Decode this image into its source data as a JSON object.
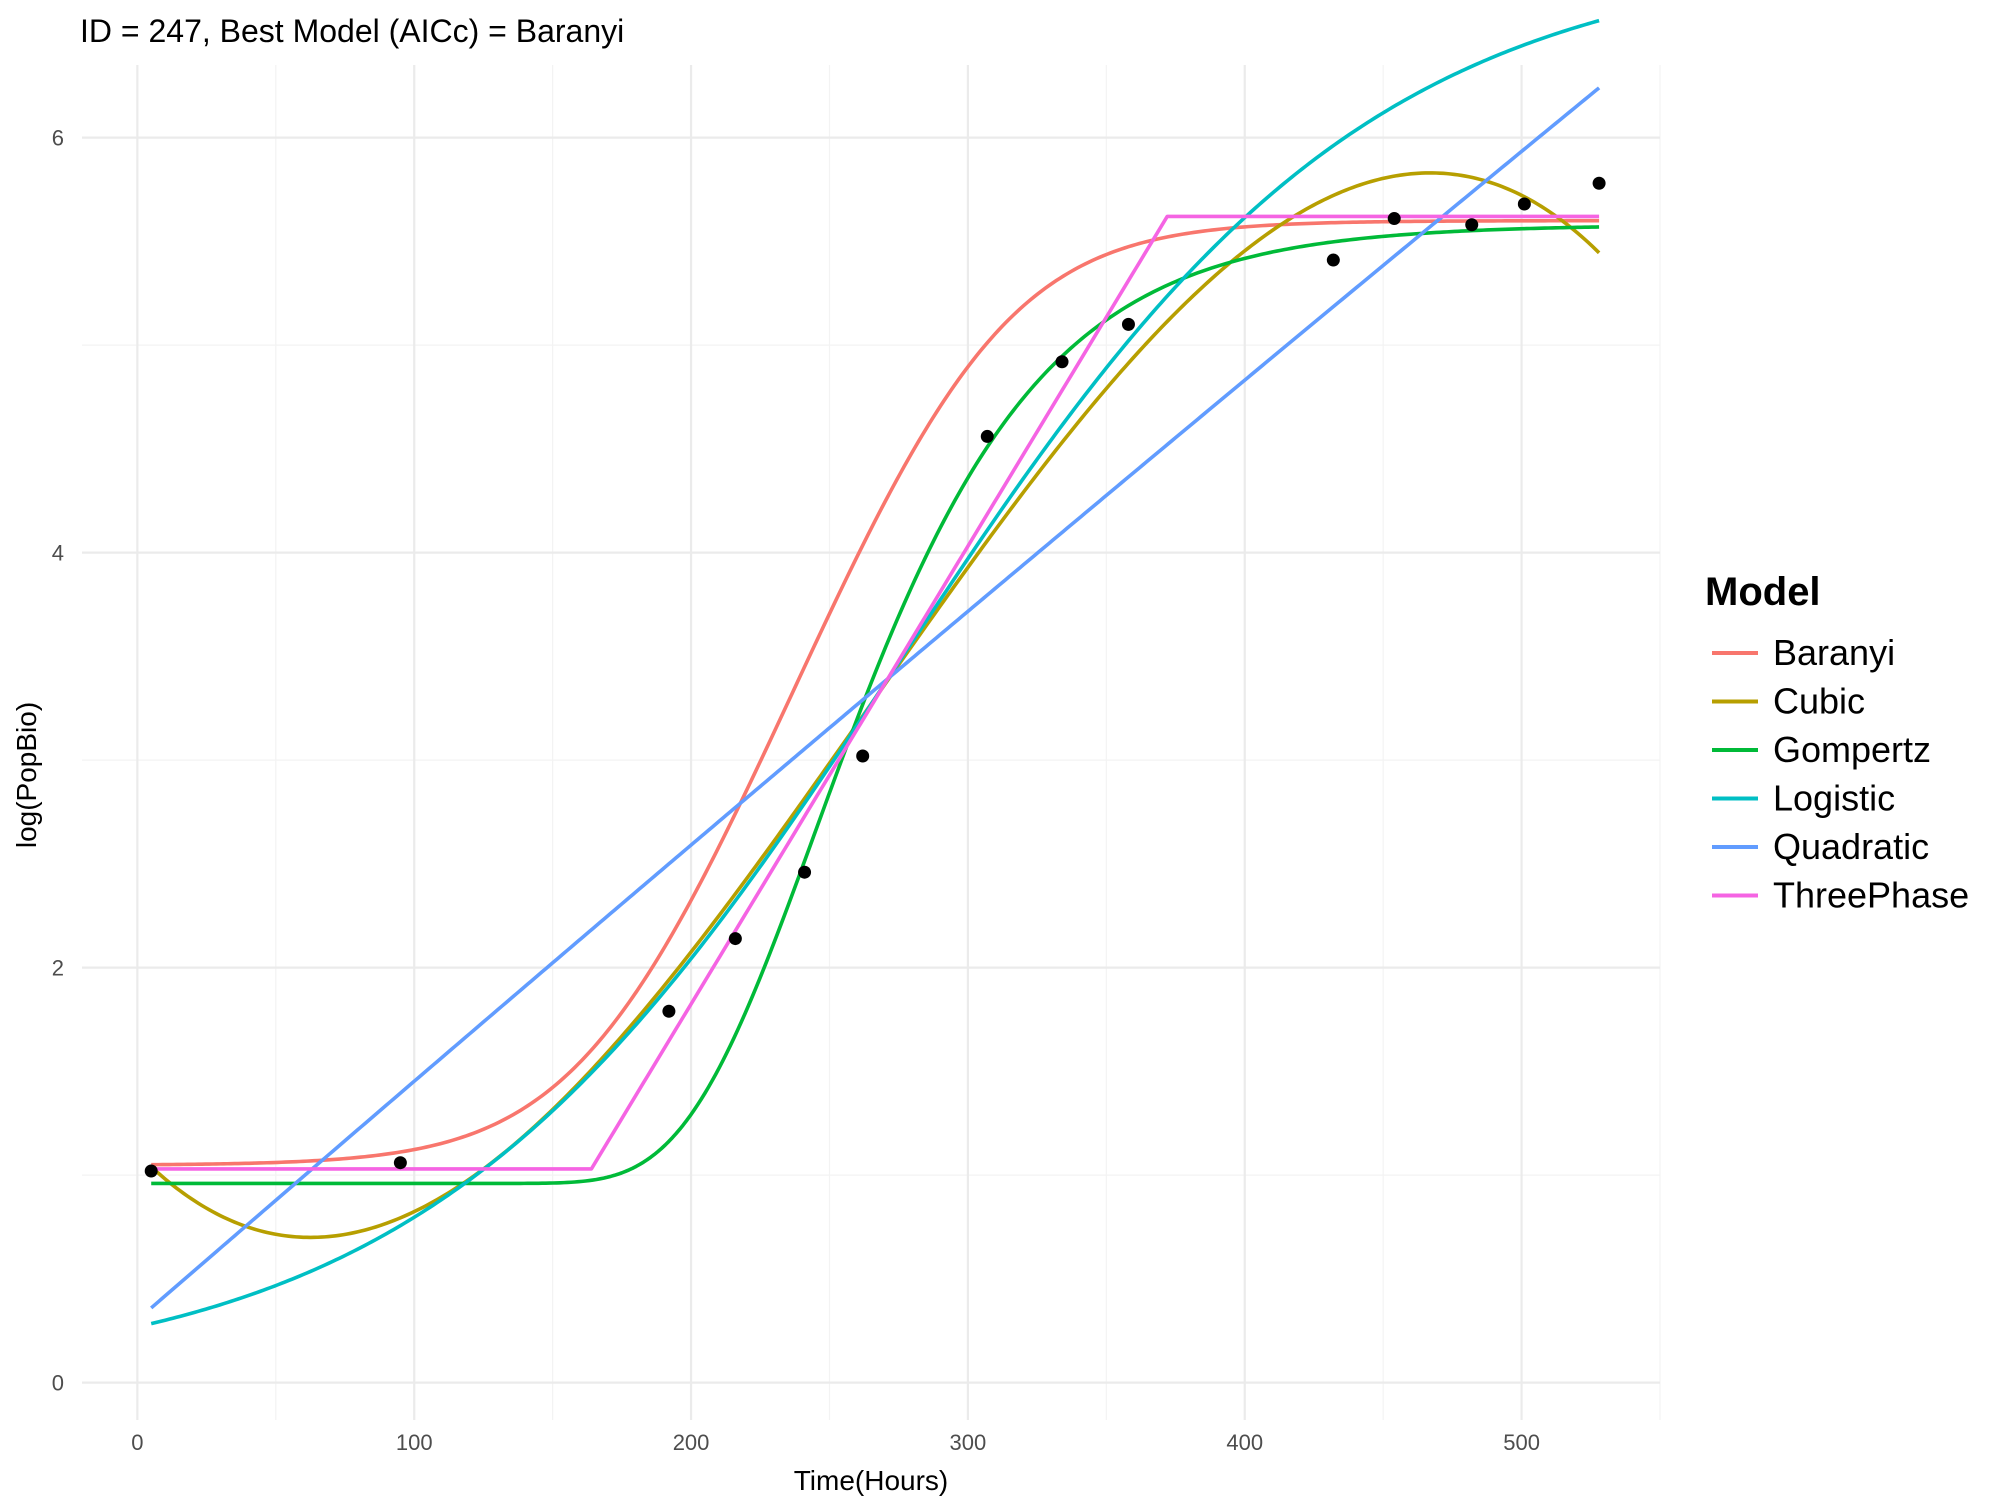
{
  "chart_data": {
    "type": "line",
    "title": "ID = 247, Best Model (AICc) = Baranyi",
    "xlabel": "Time(Hours)",
    "ylabel": "log(PopBio)",
    "xlim": [
      -20,
      550
    ],
    "ylim": [
      -0.18,
      6.35
    ],
    "x_ticks": [
      0,
      100,
      200,
      300,
      400,
      500
    ],
    "y_ticks": [
      0,
      2,
      4,
      6
    ],
    "grid": true,
    "legend": {
      "title": "Model",
      "position": "right"
    },
    "points": {
      "x": [
        5,
        95,
        192,
        216,
        241,
        262,
        307,
        334,
        358,
        432,
        454,
        482,
        501,
        528
      ],
      "y": [
        1.02,
        1.06,
        1.79,
        2.14,
        2.46,
        3.02,
        4.56,
        4.92,
        5.1,
        5.41,
        5.61,
        5.58,
        5.68,
        5.78
      ]
    },
    "series": [
      {
        "name": "Baranyi",
        "color": "#F8766D",
        "model": "baranyi",
        "params": {
          "y0": 1.05,
          "ymax": 5.6,
          "mu": 0.0352,
          "lag": 172
        }
      },
      {
        "name": "Cubic",
        "color": "#B79F00",
        "model": "cubic",
        "params": {
          "x_min": 62.5,
          "x_max": 467,
          "y_min": 0.7,
          "y_max": 5.83
        }
      },
      {
        "name": "Gompertz",
        "color": "#00BA38",
        "model": "gompertz",
        "params": {
          "A": 0.96,
          "C": 4.62,
          "B": 0.0215,
          "M": 245
        }
      },
      {
        "name": "Logistic",
        "color": "#00BFC4",
        "model": "logistic",
        "params": {
          "L": 6.9,
          "k": 0.0117,
          "x0": 274
        }
      },
      {
        "name": "Quadratic",
        "color": "#619CFF",
        "model": "quadratic",
        "params": {
          "x1": 5,
          "y1": 0.36,
          "x2": 528,
          "y2": 6.24,
          "curvature": -6e-07
        }
      },
      {
        "name": "ThreePhase",
        "color": "#F564E3",
        "model": "threephase",
        "params": {
          "y0": 1.03,
          "ymax": 5.62,
          "t_lag": 164,
          "t_max": 372
        }
      }
    ]
  }
}
